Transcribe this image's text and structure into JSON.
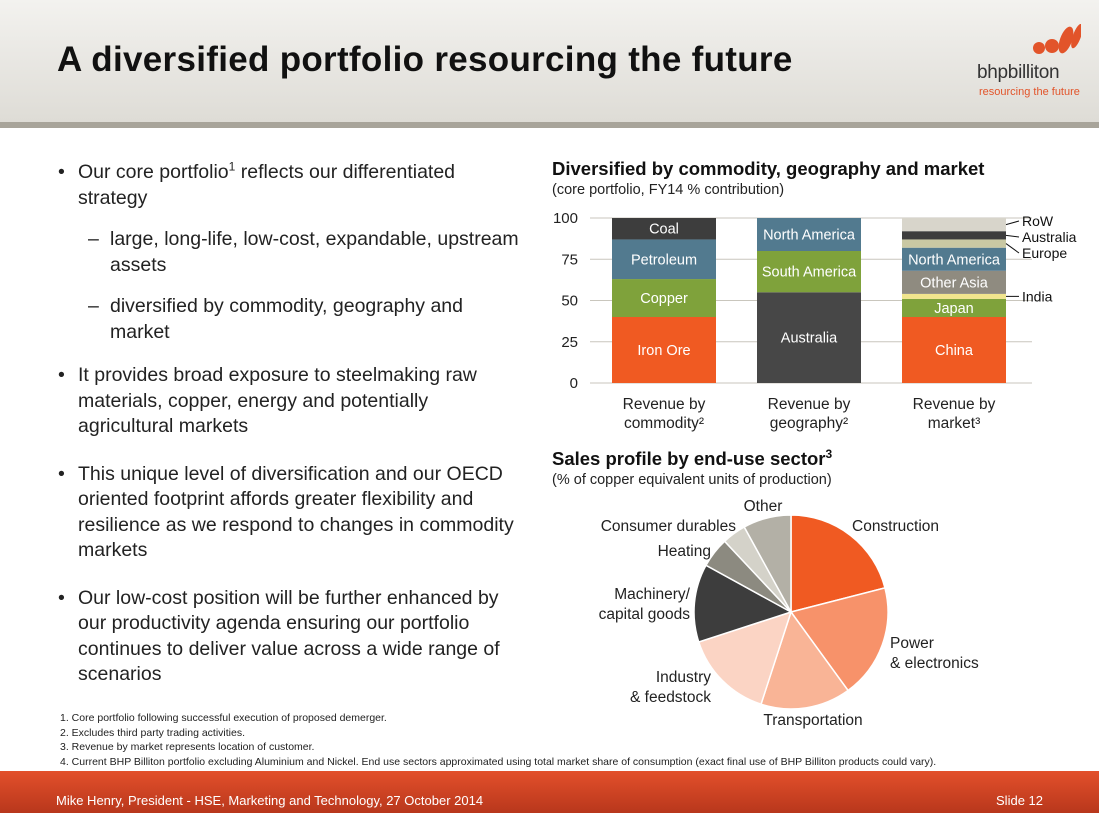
{
  "slide": {
    "title": "A diversified portfolio resourcing the future",
    "logo": {
      "name": "bhpbilliton",
      "tagline": "resourcing the future"
    },
    "footer_left": "Mike Henry, President - HSE, Marketing and Technology, 27 October 2014",
    "footer_right": "Slide 12"
  },
  "bullets": {
    "b1_text": "Our core portfolio",
    "b1_sup": "1",
    "b1_rest": " reflects our differentiated strategy",
    "b1_sub1": "large, long-life, low-cost, expandable, upstream assets",
    "b1_sub2": "diversified by commodity, geography and market",
    "b2": "It provides broad exposure to steelmaking raw materials, copper, energy and potentially agricultural markets",
    "b3": "This unique level of diversification and our OECD oriented footprint affords greater flexibility and resilience as we respond to changes in commodity markets",
    "b4": "Our low-cost position will be further enhanced by our productivity agenda ensuring our portfolio continues to deliver value across a wide range of scenarios"
  },
  "footnotes": [
    "1.  Core portfolio following successful execution of proposed demerger.",
    "2.  Excludes third party trading activities.",
    "3.  Revenue by market represents location of customer.",
    "4.  Current BHP Billiton portfolio excluding Aluminium and Nickel. End use sectors approximated using total market share of consumption (exact final use of BHP Billiton products could vary)."
  ],
  "chart_data": [
    {
      "type": "bar",
      "stacked": true,
      "title": "Diversified by commodity, geography and market",
      "subtitle": "(core portfolio, FY14 % contribution)",
      "ylim": [
        0,
        100
      ],
      "yticks": [
        "0",
        "25",
        "50",
        "75",
        "100"
      ],
      "grid": true,
      "colors": {
        "bar_text": "#ffffff",
        "callout": "#111111"
      },
      "bars": [
        {
          "category": [
            "Revenue by",
            "commodity²"
          ],
          "segments": [
            {
              "label": "Iron Ore",
              "value": 40,
              "color": "#f05a22"
            },
            {
              "label": "Copper",
              "value": 23,
              "color": "#7fa23b"
            },
            {
              "label": "Petroleum",
              "value": 24,
              "color": "#527a8f"
            },
            {
              "label": "Coal",
              "value": 13,
              "color": "#3d3d3d"
            }
          ]
        },
        {
          "category": [
            "Revenue by",
            "geography²"
          ],
          "segments": [
            {
              "label": "Australia",
              "value": 55,
              "color": "#474747"
            },
            {
              "label": "South America",
              "value": 25,
              "color": "#7fa23b"
            },
            {
              "label": "North America",
              "value": 20,
              "color": "#527a8f"
            }
          ]
        },
        {
          "category": [
            "Revenue by",
            "market³"
          ],
          "segments": [
            {
              "label": "China",
              "value": 40,
              "color": "#f05a22",
              "callout": false
            },
            {
              "label": "Japan",
              "value": 11,
              "color": "#7fa23b",
              "callout": false
            },
            {
              "label": "India",
              "value": 3,
              "color": "#f1e58d",
              "callout": true
            },
            {
              "label": "Other Asia",
              "value": 14,
              "color": "#8f8b80",
              "callout": false
            },
            {
              "label": "North America",
              "value": 14,
              "color": "#527a8f",
              "callout": false
            },
            {
              "label": "Europe",
              "value": 5,
              "color": "#c9c8a3",
              "callout": true
            },
            {
              "label": "Australia",
              "value": 5,
              "color": "#3d3d3d",
              "callout": true
            },
            {
              "label": "RoW",
              "value": 8,
              "color": "#d8d5cb",
              "callout": true
            }
          ]
        }
      ]
    },
    {
      "type": "pie",
      "title": "Sales profile by end-use sector",
      "title_sup": "3",
      "subtitle": "(% of copper equivalent units of production)",
      "slices": [
        {
          "label": [
            "Construction"
          ],
          "value": 21,
          "color": "#f05a22"
        },
        {
          "label": [
            "Power",
            "& electronics"
          ],
          "value": 19,
          "color": "#f7926a"
        },
        {
          "label": [
            "Transportation"
          ],
          "value": 15,
          "color": "#f9b496"
        },
        {
          "label": [
            "Industry",
            "& feedstock"
          ],
          "value": 15,
          "color": "#fbd4c4"
        },
        {
          "label": [
            "Machinery/",
            "capital goods"
          ],
          "value": 13,
          "color": "#3d3d3d"
        },
        {
          "label": [
            "Heating"
          ],
          "value": 5,
          "color": "#8c8a80"
        },
        {
          "label": [
            "Consumer durables"
          ],
          "value": 4,
          "color": "#d4d2c9"
        },
        {
          "label": [
            "Other"
          ],
          "value": 8,
          "color": "#b3b0a6"
        }
      ]
    }
  ]
}
